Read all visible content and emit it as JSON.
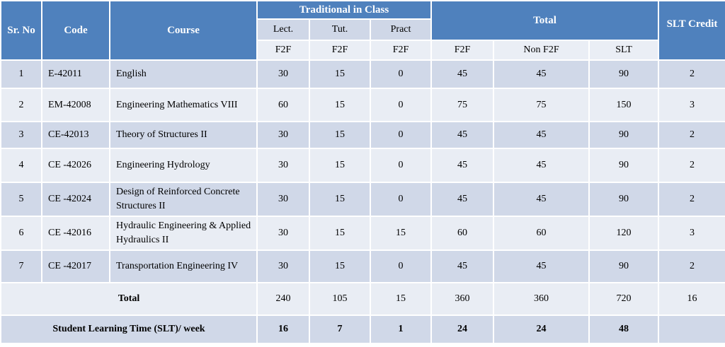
{
  "header": {
    "sr_no": "Sr. No",
    "code": "Code",
    "course": "Course",
    "traditional": "Traditional in Class",
    "total": "Total",
    "slt_credit": "SLT Credit",
    "lect": "Lect.",
    "tut": "Tut.",
    "pract": "Pract",
    "f2f_lect": "F2F",
    "f2f_tut": "F2F",
    "f2f_pract": "F2F",
    "f2f_total": "F2F",
    "non_f2f": "Non F2F",
    "slt": "SLT"
  },
  "rows": [
    {
      "sr": "1",
      "code": "E-42011",
      "course": "English",
      "lect": "30",
      "tut": "15",
      "pract": "0",
      "f2f": "45",
      "nonf2f": "45",
      "slt": "90",
      "credit": "2"
    },
    {
      "sr": "2",
      "code": "EM-42008",
      "course": "Engineering Mathematics VIII",
      "lect": "60",
      "tut": "15",
      "pract": "0",
      "f2f": "75",
      "nonf2f": "75",
      "slt": "150",
      "credit": "3"
    },
    {
      "sr": "3",
      "code": "CE-42013",
      "course": "Theory of Structures II",
      "lect": "30",
      "tut": "15",
      "pract": "0",
      "f2f": "45",
      "nonf2f": "45",
      "slt": "90",
      "credit": "2"
    },
    {
      "sr": "4",
      "code": "CE -42026",
      "course": "Engineering Hydrology",
      "lect": "30",
      "tut": "15",
      "pract": "0",
      "f2f": "45",
      "nonf2f": "45",
      "slt": "90",
      "credit": "2"
    },
    {
      "sr": "5",
      "code": "CE -42024",
      "course": "Design of Reinforced Concrete Structures II",
      "lect": "30",
      "tut": "15",
      "pract": "0",
      "f2f": "45",
      "nonf2f": "45",
      "slt": "90",
      "credit": "2"
    },
    {
      "sr": "6",
      "code": "CE -42016",
      "course": "Hydraulic Engineering & Applied Hydraulics II",
      "lect": "30",
      "tut": "15",
      "pract": "15",
      "f2f": "60",
      "nonf2f": "60",
      "slt": "120",
      "credit": "3"
    },
    {
      "sr": "7",
      "code": "CE -42017",
      "course": "Transportation Engineering IV",
      "lect": "30",
      "tut": "15",
      "pract": "0",
      "f2f": "45",
      "nonf2f": "45",
      "slt": "90",
      "credit": "2"
    }
  ],
  "total": {
    "label": "Total",
    "lect": "240",
    "tut": "105",
    "pract": "15",
    "f2f": "360",
    "nonf2f": "360",
    "slt": "720",
    "credit": "16"
  },
  "slt_week": {
    "label": "Student Learning Time (SLT)/ week",
    "lect": "16",
    "tut": "7",
    "pract": "1",
    "f2f": "24",
    "nonf2f": "24",
    "slt": "48",
    "credit": ""
  }
}
